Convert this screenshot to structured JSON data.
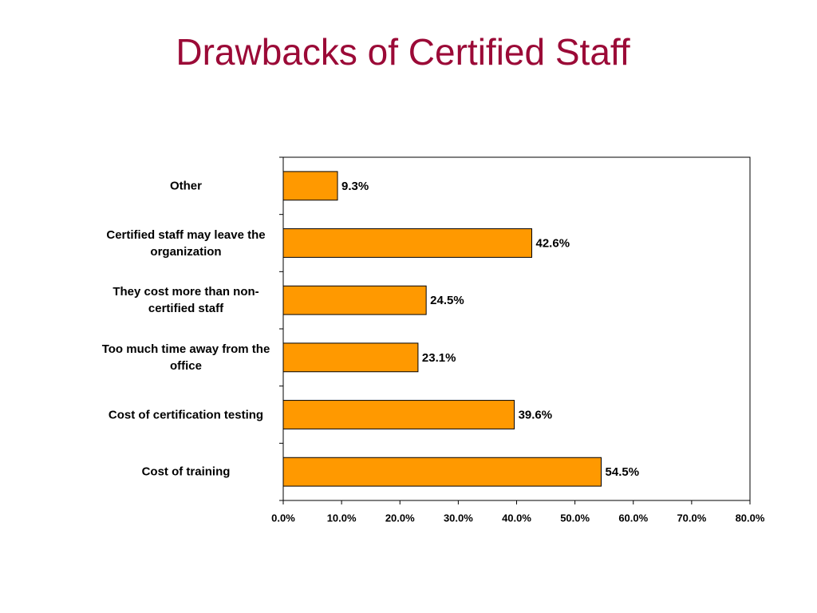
{
  "chart_data": {
    "type": "bar",
    "orientation": "horizontal",
    "title": "Drawbacks of Certified Staff",
    "categories": [
      "Cost of training",
      "Cost of certification testing",
      "Too much time away from the office",
      "They cost more than non-certified staff",
      "Certified staff may leave the organization",
      "Other"
    ],
    "values": [
      54.5,
      39.6,
      23.1,
      24.5,
      42.6,
      9.3
    ],
    "value_labels": [
      "54.5%",
      "39.6%",
      "23.1%",
      "24.5%",
      "42.6%",
      "9.3%"
    ],
    "color": "#ff9900",
    "xlim": [
      0,
      80
    ],
    "xticks": [
      {
        "value": 0,
        "label": "0.0%"
      },
      {
        "value": 10,
        "label": "10.0%"
      },
      {
        "value": 20,
        "label": "20.0%"
      },
      {
        "value": 30,
        "label": "30.0%"
      },
      {
        "value": 40,
        "label": "40.0%"
      },
      {
        "value": 50,
        "label": "50.0%"
      },
      {
        "value": 60,
        "label": "60.0%"
      },
      {
        "value": 70,
        "label": "70.0%"
      },
      {
        "value": 80,
        "label": "80.0%"
      }
    ],
    "grid": false
  }
}
